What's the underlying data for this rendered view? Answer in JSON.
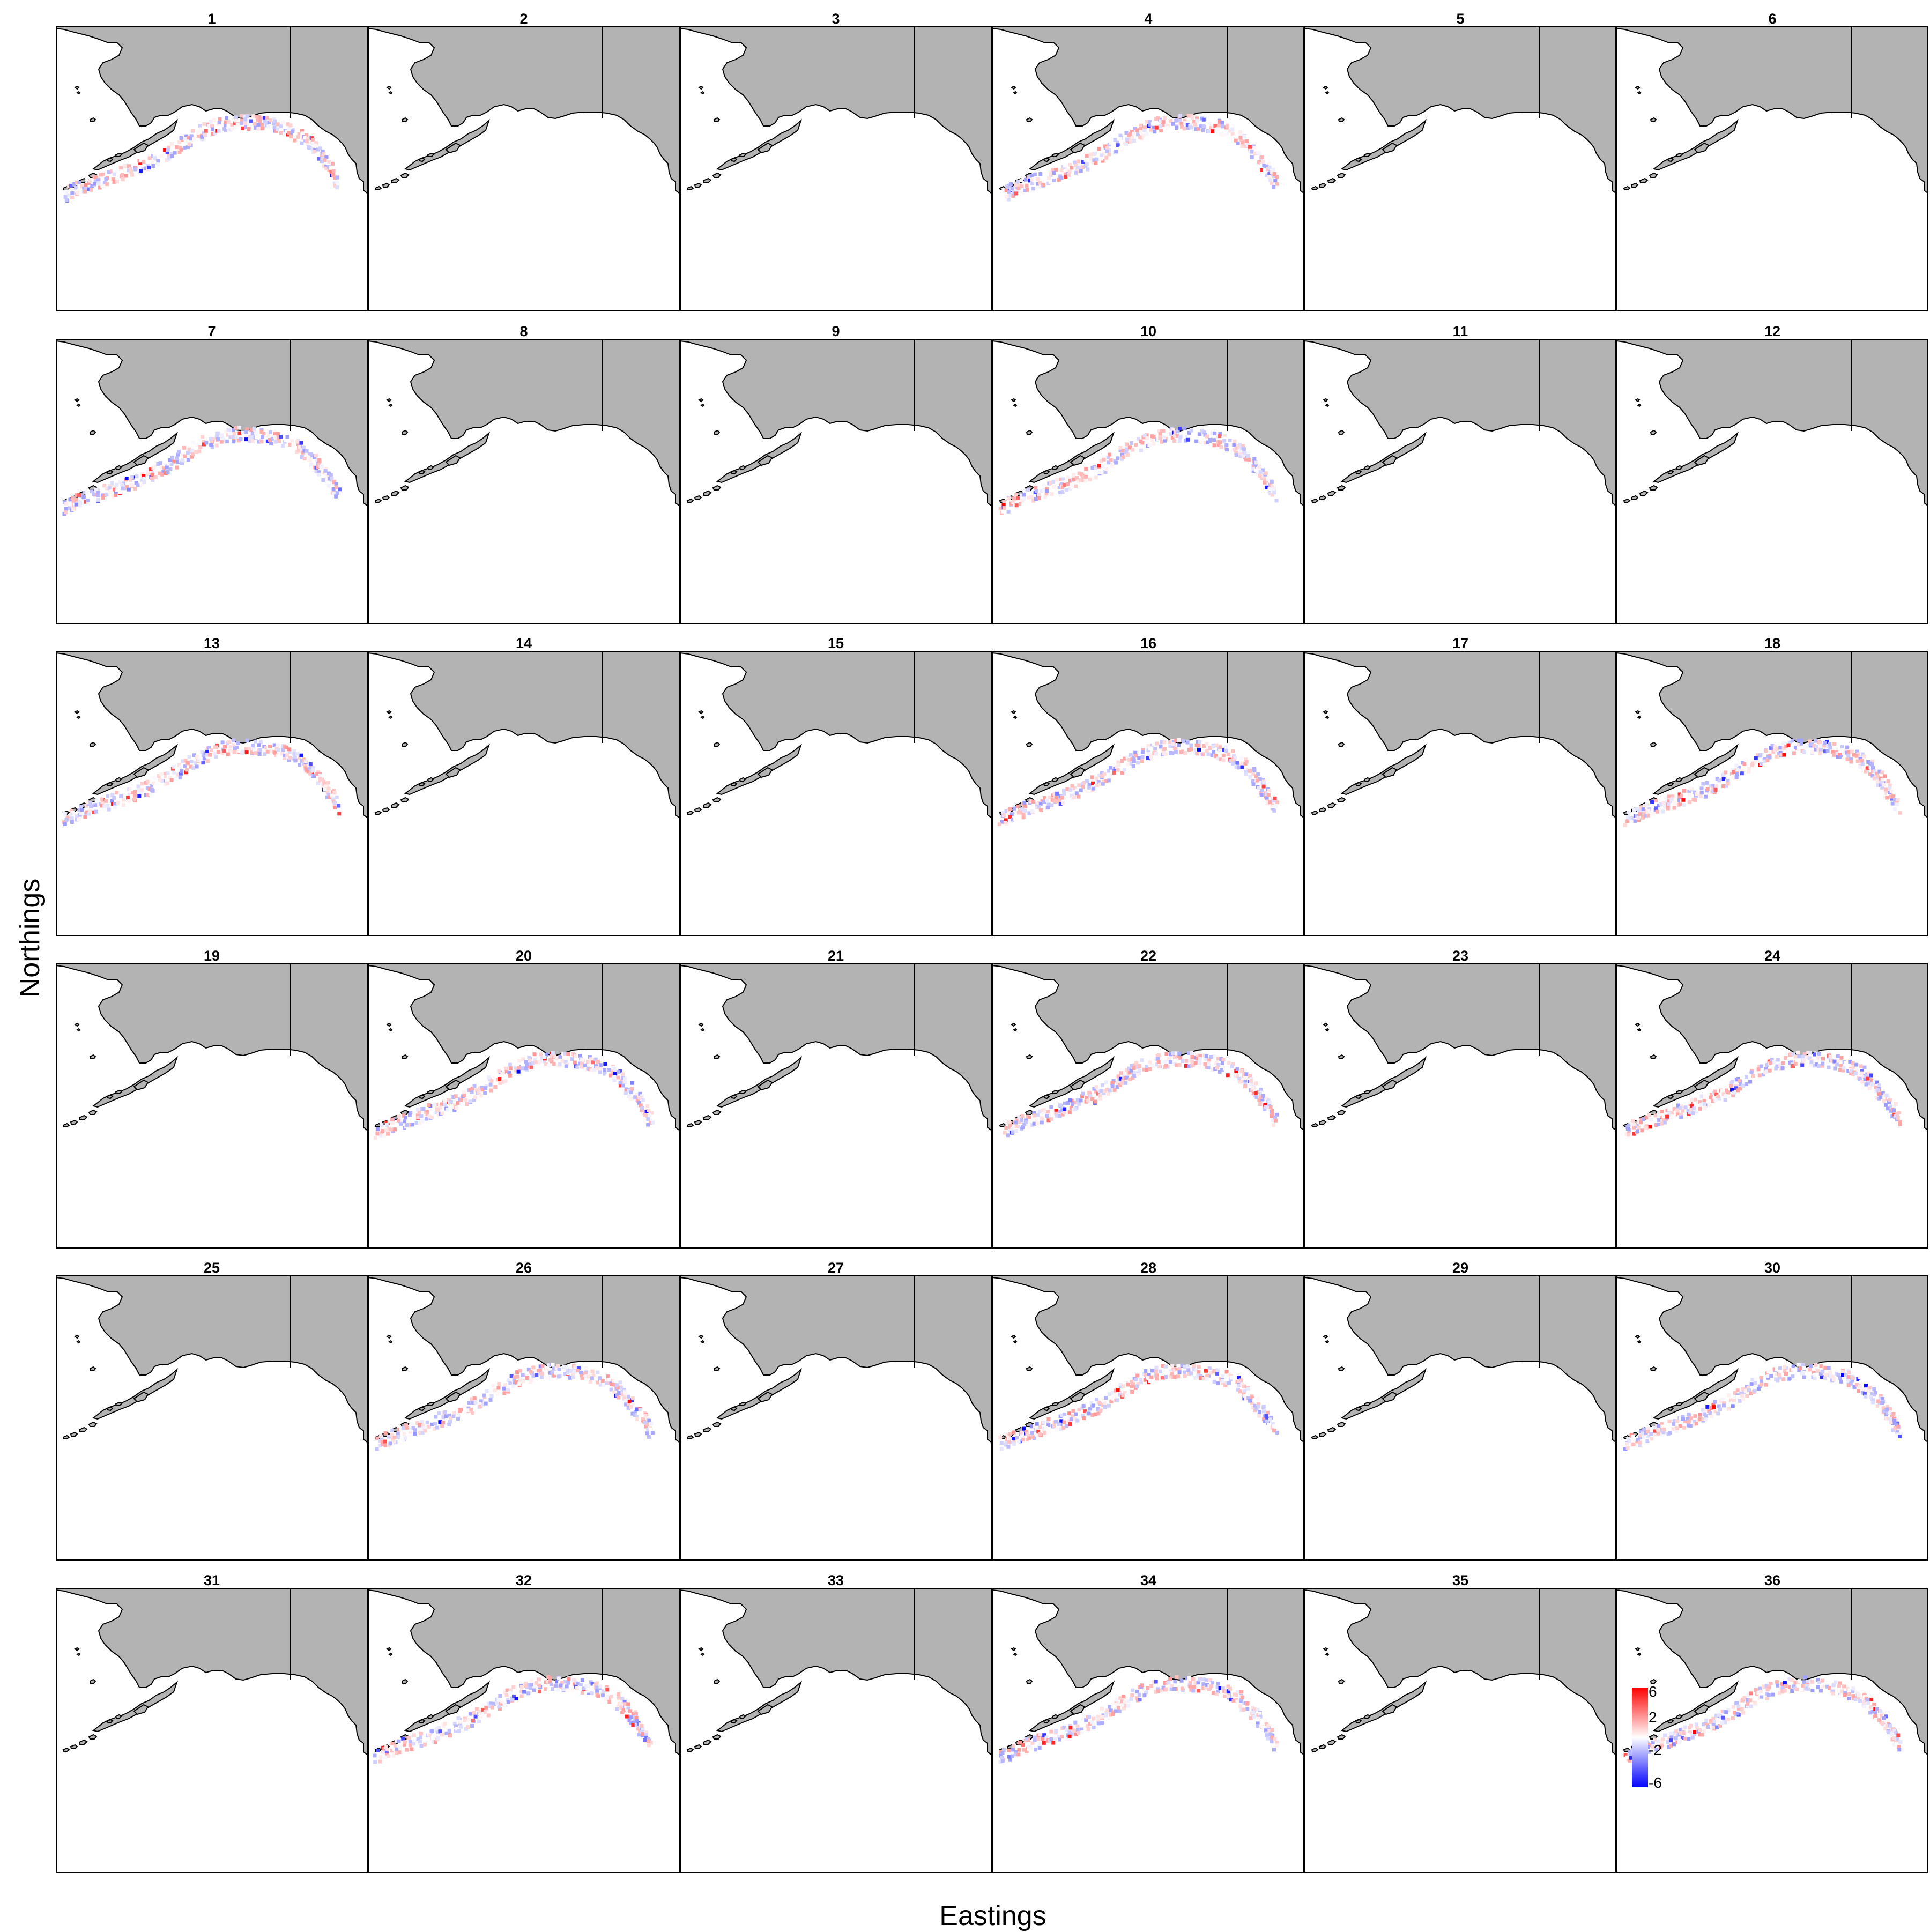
{
  "x_axis_label": "Eastings",
  "y_axis_label": "Northings",
  "land_color": "#b3b3b3",
  "ocean_color": "#ffffff",
  "positive_color": "#ff0000",
  "negative_color": "#0000ff",
  "legend": {
    "colors": [
      "#0000ff",
      "#ffffff",
      "#ff0000"
    ],
    "ticks": [
      {
        "label": "6",
        "value": 6
      },
      {
        "label": "2",
        "value": 2
      },
      {
        "label": "-2",
        "value": -2
      },
      {
        "label": "-6",
        "value": -6
      }
    ],
    "range": [
      -6,
      6
    ]
  },
  "panels": [
    {
      "label": "1",
      "has_data": true
    },
    {
      "label": "2",
      "has_data": false
    },
    {
      "label": "3",
      "has_data": false
    },
    {
      "label": "4",
      "has_data": true
    },
    {
      "label": "5",
      "has_data": false
    },
    {
      "label": "6",
      "has_data": false
    },
    {
      "label": "7",
      "has_data": true
    },
    {
      "label": "8",
      "has_data": false
    },
    {
      "label": "9",
      "has_data": false
    },
    {
      "label": "10",
      "has_data": true
    },
    {
      "label": "11",
      "has_data": false
    },
    {
      "label": "12",
      "has_data": false
    },
    {
      "label": "13",
      "has_data": true
    },
    {
      "label": "14",
      "has_data": false
    },
    {
      "label": "15",
      "has_data": false
    },
    {
      "label": "16",
      "has_data": true
    },
    {
      "label": "17",
      "has_data": false
    },
    {
      "label": "18",
      "has_data": true
    },
    {
      "label": "19",
      "has_data": false
    },
    {
      "label": "20",
      "has_data": true
    },
    {
      "label": "21",
      "has_data": false
    },
    {
      "label": "22",
      "has_data": true
    },
    {
      "label": "23",
      "has_data": false
    },
    {
      "label": "24",
      "has_data": true
    },
    {
      "label": "25",
      "has_data": false
    },
    {
      "label": "26",
      "has_data": true
    },
    {
      "label": "27",
      "has_data": false
    },
    {
      "label": "28",
      "has_data": true
    },
    {
      "label": "29",
      "has_data": false
    },
    {
      "label": "30",
      "has_data": true
    },
    {
      "label": "31",
      "has_data": false
    },
    {
      "label": "32",
      "has_data": true
    },
    {
      "label": "33",
      "has_data": false
    },
    {
      "label": "34",
      "has_data": true
    },
    {
      "label": "35",
      "has_data": false
    },
    {
      "label": "36",
      "has_data": true
    }
  ]
}
